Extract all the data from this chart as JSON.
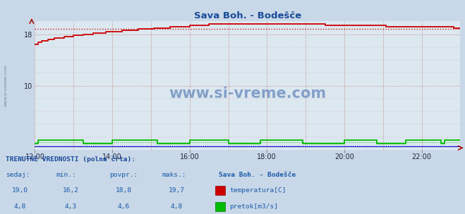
{
  "title": "Sava Boh. - Bodešče",
  "title_color": "#1a4a9a",
  "bg_color": "#c8d8e8",
  "plot_bg_color": "#dce8f0",
  "xlim_min": 0,
  "xlim_max": 660,
  "ylim_min": 0,
  "ylim_max": 20,
  "yticks": [
    10,
    18
  ],
  "xtick_labels": [
    "12:00",
    "14:00",
    "16:00",
    "18:00",
    "20:00",
    "22:00"
  ],
  "xtick_positions": [
    0,
    120,
    240,
    360,
    480,
    600
  ],
  "grid_color": "#cc9999",
  "temp_color": "#cc0000",
  "flow_color": "#00bb00",
  "height_color": "#2222cc",
  "watermark_color": "#1a4a9a",
  "watermark_alpha": 0.45,
  "temp_avg": 18.8,
  "flow_avg_display": 1.15,
  "height_display": 0.6,
  "footer_bg": "#dde8f0",
  "label_color": "#1a4a9a",
  "value_color": "#1a5aaa",
  "temp_current": "19,0",
  "temp_min": "16,2",
  "temp_avg_str": "18,8",
  "temp_max": "19,7",
  "flow_current": "4,8",
  "flow_min": "4,3",
  "flow_avg_str": "4,6",
  "flow_max": "4,8",
  "station_name": "Sava Boh. - Bodešče"
}
